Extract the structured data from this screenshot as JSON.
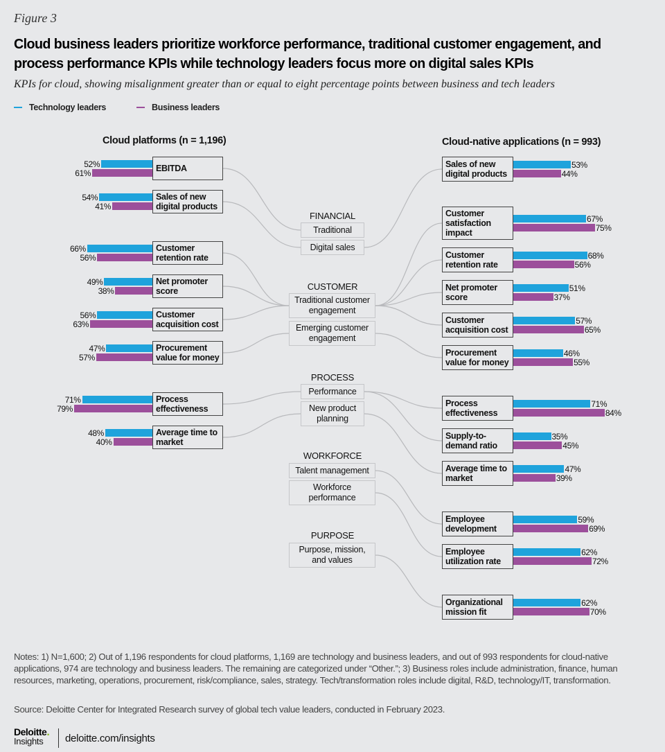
{
  "figure_label": "Figure 3",
  "title": "Cloud business leaders prioritize workforce performance, traditional customer engagement, and process performance KPIs while technology leaders focus more on digital sales KPIs",
  "subtitle": "KPIs for cloud, showing misalignment greater than or equal to eight percentage points between business and tech leaders",
  "colors": {
    "tech": "#1fa3dc",
    "business": "#9c4f9b",
    "box_border": "#444444",
    "connector": "#b8b9bc"
  },
  "chart_data": {
    "type": "bar",
    "orientation": "horizontal",
    "legend": [
      {
        "name": "Technology leaders",
        "color": "#1fa3dc"
      },
      {
        "name": "Business leaders",
        "color": "#9c4f9b"
      }
    ],
    "legend_position": "top-left",
    "value_unit": "%",
    "categories": [
      {
        "name": "FINANCIAL",
        "items": [
          "Traditional",
          "Digital sales"
        ]
      },
      {
        "name": "CUSTOMER",
        "items": [
          "Traditional customer engagement",
          "Emerging customer engagement"
        ]
      },
      {
        "name": "PROCESS",
        "items": [
          "Performance",
          "New product planning"
        ]
      },
      {
        "name": "WORKFORCE",
        "items": [
          "Talent management",
          "Workforce performance"
        ]
      },
      {
        "name": "PURPOSE",
        "items": [
          "Purpose, mission, and values"
        ]
      }
    ],
    "panels": [
      {
        "id": "cloud-platforms",
        "title": "Cloud platforms (n = 1,196)",
        "kpis": [
          {
            "name": "EBITDA",
            "tech": 52,
            "business": 61,
            "category": "Traditional"
          },
          {
            "name": "Sales of new digital products",
            "tech": 54,
            "business": 41,
            "category": "Digital sales"
          },
          {
            "name": "Customer retention rate",
            "tech": 66,
            "business": 56,
            "category": "Traditional customer engagement"
          },
          {
            "name": "Net promoter score",
            "tech": 49,
            "business": 38,
            "category": "Traditional customer engagement"
          },
          {
            "name": "Customer acquisition cost",
            "tech": 56,
            "business": 63,
            "category": "Traditional customer engagement"
          },
          {
            "name": "Procurement value for money",
            "tech": 47,
            "business": 57,
            "category": "Emerging customer engagement"
          },
          {
            "name": "Process effectiveness",
            "tech": 71,
            "business": 79,
            "category": "Performance"
          },
          {
            "name": "Average time to market",
            "tech": 48,
            "business": 40,
            "category": "New product planning"
          }
        ]
      },
      {
        "id": "cloud-native-applications",
        "title": "Cloud-native applications (n = 993)",
        "kpis": [
          {
            "name": "Sales of new digital products",
            "tech": 53,
            "business": 44,
            "category": "Digital sales"
          },
          {
            "name": "Customer satisfaction impact",
            "tech": 67,
            "business": 75,
            "category": "Traditional customer engagement"
          },
          {
            "name": "Customer retention rate",
            "tech": 68,
            "business": 56,
            "category": "Traditional customer engagement"
          },
          {
            "name": "Net promoter score",
            "tech": 51,
            "business": 37,
            "category": "Traditional customer engagement"
          },
          {
            "name": "Customer acquisition cost",
            "tech": 57,
            "business": 65,
            "category": "Traditional customer engagement"
          },
          {
            "name": "Procurement value for money",
            "tech": 46,
            "business": 55,
            "category": "Emerging customer engagement"
          },
          {
            "name": "Process effectiveness",
            "tech": 71,
            "business": 84,
            "category": "Performance"
          },
          {
            "name": "Supply-to-demand ratio",
            "tech": 35,
            "business": 45,
            "category": "Performance"
          },
          {
            "name": "Average time to market",
            "tech": 47,
            "business": 39,
            "category": "New product planning"
          },
          {
            "name": "Employee development",
            "tech": 59,
            "business": 69,
            "category": "Talent management"
          },
          {
            "name": "Employee utilization rate",
            "tech": 62,
            "business": 72,
            "category": "Workforce performance"
          },
          {
            "name": "Organizational mission fit",
            "tech": 62,
            "business": 70,
            "category": "Purpose, mission, and values"
          }
        ]
      }
    ]
  },
  "labels": {
    "left_kpis": [
      "EBITDA",
      "Sales of new digital products",
      "Customer retention rate",
      "Net promoter score",
      "Customer acquisition cost",
      "Procurement value for money",
      "Process effectiveness",
      "Average time to market"
    ],
    "right_kpis": [
      "Sales of new digital products",
      "Customer satisfaction impact",
      "Customer retention rate",
      "Net promoter score",
      "Customer acquisition cost",
      "Procurement value for money",
      "Process effectiveness",
      "Supply-to-demand ratio",
      "Average time to market",
      "Employee development",
      "Employee utilization rate",
      "Organizational mission fit"
    ]
  },
  "notes": "Notes: 1) N=1,600; 2) Out of 1,196 respondents for cloud platforms, 1,169 are technology and business leaders, and out of 993 respondents for cloud-native applications, 974 are technology and business leaders. The remaining are categorized under “Other.”; 3) Business roles include administration, finance, human resources, marketing, operations, procurement, risk/compliance, sales, strategy. Tech/transformation roles include digital, R&D, technology/IT, transformation.",
  "source": "Source: Deloitte Center for Integrated Research survey of global tech value leaders, conducted in February 2023.",
  "footer": {
    "brand": "Deloitte",
    "brand_dot": ".",
    "brand_sub": "Insights",
    "url": "deloitte.com/insights"
  }
}
